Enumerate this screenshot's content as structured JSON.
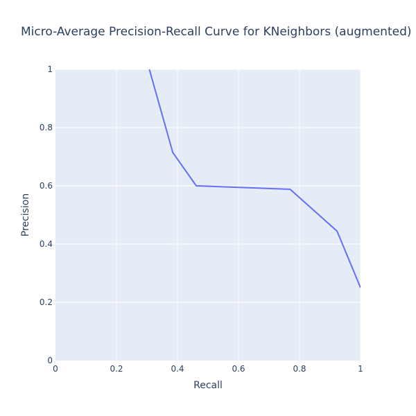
{
  "chart_data": {
    "type": "line",
    "title": "Micro-Average Precision-Recall Curve for KNeighbors (augmented)",
    "xlabel": "Recall",
    "ylabel": "Precision",
    "xlim": [
      0,
      1
    ],
    "ylim": [
      0,
      1
    ],
    "xticks": [
      0,
      0.2,
      0.4,
      0.6,
      0.8,
      1
    ],
    "yticks": [
      0,
      0.2,
      0.4,
      0.6,
      0.8,
      1
    ],
    "x_tick_labels": [
      "0",
      "0.2",
      "0.4",
      "0.6",
      "0.8",
      "1"
    ],
    "y_tick_labels": [
      "0",
      "0.2",
      "0.4",
      "0.6",
      "0.8",
      "1"
    ],
    "grid": true,
    "series": [
      {
        "x": [
          0.3077,
          0.3846,
          0.4615,
          0.7692,
          0.9231,
          1.0
        ],
        "y": [
          1.0,
          0.7143,
          0.6,
          0.5882,
          0.4444,
          0.25
        ]
      }
    ],
    "colors": {
      "plot_background": "#e5ecf6",
      "grid": "#ffffff",
      "line": "#636efa",
      "text": "#2a3f5f"
    }
  }
}
